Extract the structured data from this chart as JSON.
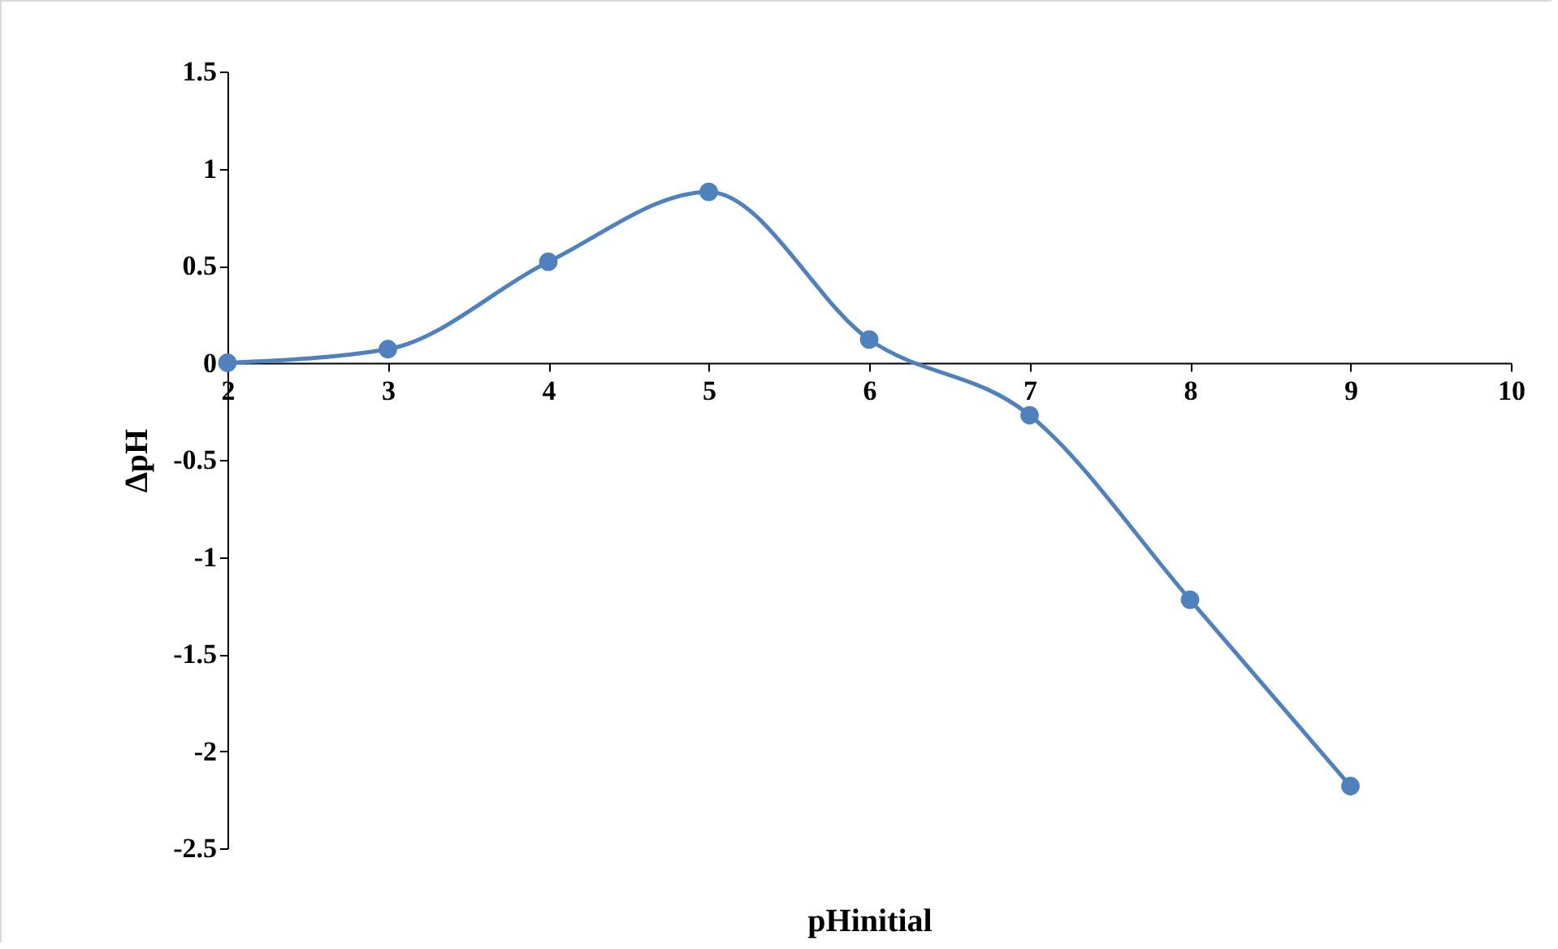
{
  "chart_data": {
    "type": "line",
    "xlabel": "pHinitial",
    "ylabel": "ΔpH",
    "x": [
      2,
      3,
      4,
      5,
      6,
      7,
      8,
      9
    ],
    "series": [
      {
        "color": "#4f81bd",
        "values": [
          0,
          0.07,
          0.52,
          0.88,
          0.12,
          -0.27,
          -1.22,
          -2.18
        ]
      }
    ],
    "xlim": [
      2,
      10
    ],
    "xticks": [
      2,
      3,
      4,
      5,
      6,
      7,
      8,
      9,
      10
    ],
    "ylim": [
      -2.5,
      1.5
    ],
    "yticks": [
      -2.5,
      -2,
      -1.5,
      -1,
      -0.5,
      0,
      0.5,
      1,
      1.5
    ],
    "grid": false,
    "marker": "circle",
    "line_style": "solid"
  }
}
